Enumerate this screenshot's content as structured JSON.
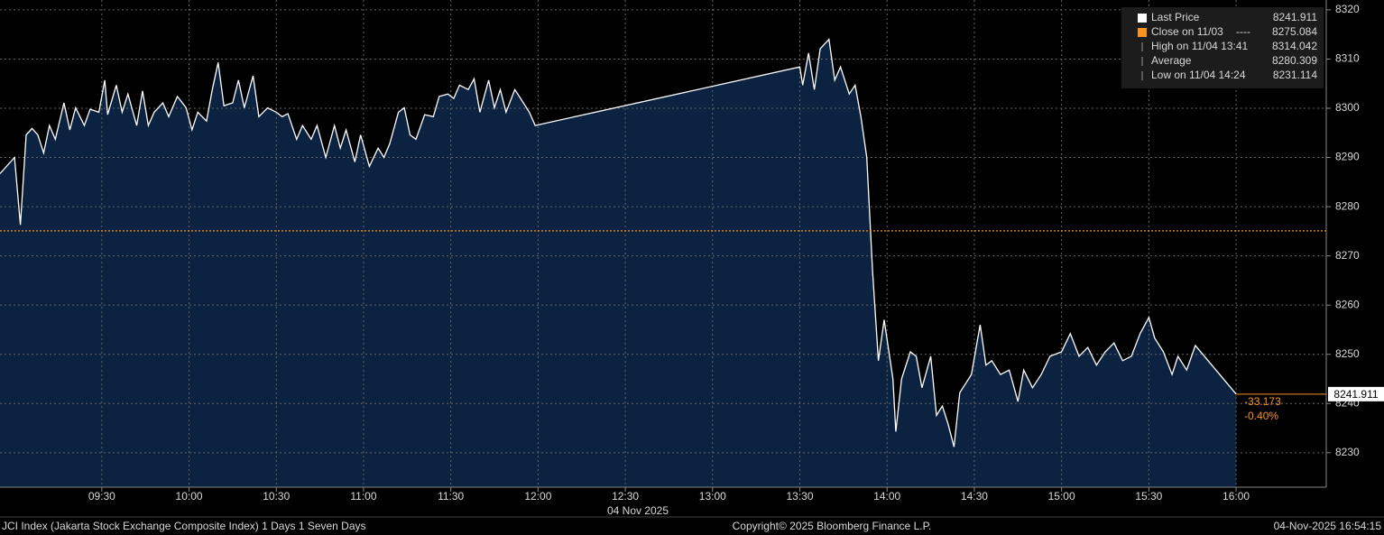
{
  "chart_data": {
    "type": "area",
    "x": [
      "08:55",
      "09:00",
      "09:02",
      "09:04",
      "09:06",
      "09:08",
      "09:10",
      "09:12",
      "09:14",
      "09:17",
      "09:19",
      "09:21",
      "09:24",
      "09:26",
      "09:29",
      "09:31",
      "09:32",
      "09:35",
      "09:37",
      "09:39",
      "09:42",
      "09:44",
      "09:46",
      "09:48",
      "09:51",
      "09:53",
      "09:56",
      "09:59",
      "10:01",
      "10:03",
      "10:06",
      "10:08",
      "10:10",
      "10:12",
      "10:15",
      "10:17",
      "10:19",
      "10:22",
      "10:24",
      "10:27",
      "10:30",
      "10:32",
      "10:34",
      "10:37",
      "10:39",
      "10:42",
      "10:44",
      "10:47",
      "10:50",
      "10:52",
      "10:54",
      "10:57",
      "10:59",
      "11:02",
      "11:05",
      "11:07",
      "11:09",
      "11:12",
      "11:14",
      "11:16",
      "11:18",
      "11:21",
      "11:24",
      "11:26",
      "11:29",
      "11:31",
      "11:33",
      "11:36",
      "11:38",
      "11:40",
      "11:43",
      "11:45",
      "11:47",
      "11:49",
      "11:52",
      "11:54",
      "11:57",
      "11:59",
      "13:30",
      "13:31",
      "13:33",
      "13:35",
      "13:37",
      "13:40",
      "13:42",
      "13:44",
      "13:47",
      "13:49",
      "13:51",
      "13:53",
      "13:55",
      "13:57",
      "13:59",
      "14:02",
      "14:03",
      "14:05",
      "14:08",
      "14:10",
      "14:12",
      "14:15",
      "14:17",
      "14:19",
      "14:21",
      "14:23",
      "14:25",
      "14:29",
      "14:32",
      "14:34",
      "14:36",
      "14:39",
      "14:42",
      "14:45",
      "14:47",
      "14:50",
      "14:53",
      "14:56",
      "15:00",
      "15:03",
      "15:06",
      "15:09",
      "15:12",
      "15:15",
      "15:18",
      "15:21",
      "15:24",
      "15:27",
      "15:30",
      "15:32",
      "15:35",
      "15:38",
      "15:40",
      "15:43",
      "15:46",
      "16:00"
    ],
    "series": [
      {
        "name": "Last Price",
        "color": "#ffffff",
        "fill": "#0b2240",
        "values": [
          8286.7,
          8290,
          8276.3,
          8294.6,
          8295.9,
          8294.6,
          8290.9,
          8296.5,
          8293.7,
          8301.1,
          8295.6,
          8300.1,
          8296.5,
          8299.8,
          8299.2,
          8305.7,
          8298.7,
          8304.7,
          8299.2,
          8302.9,
          8296.5,
          8303.5,
          8296.5,
          8299.2,
          8301.1,
          8298.3,
          8302.4,
          8300.1,
          8295.6,
          8299.2,
          8297.4,
          8303.8,
          8309.3,
          8300.5,
          8301.1,
          8305.7,
          8300.1,
          8306.6,
          8298.3,
          8300.1,
          8299.2,
          8298.3,
          8298.9,
          8293.7,
          8296.5,
          8293.7,
          8296.5,
          8290,
          8296.5,
          8291.9,
          8295.6,
          8289.1,
          8294.6,
          8288.2,
          8291.9,
          8290,
          8292.8,
          8299.2,
          8300.1,
          8294.6,
          8293.7,
          8298.7,
          8298.3,
          8302.4,
          8302.9,
          8302,
          8304.7,
          8303.8,
          8306,
          8299.2,
          8305.7,
          8300.1,
          8303.8,
          8299.2,
          8303.8,
          8302,
          8299.2,
          8296.5,
          8308.4,
          8304.7,
          8311.2,
          8303.8,
          8312.1,
          8314.0,
          8305.7,
          8308.4,
          8302.9,
          8304.7,
          8298.3,
          8290,
          8267,
          8248.7,
          8257,
          8245,
          8234.3,
          8245,
          8250.5,
          8249.6,
          8243.2,
          8249.6,
          8237.6,
          8239.5,
          8235.8,
          8231.2,
          8242.2,
          8245.9,
          8256,
          8247.8,
          8248.7,
          8245.9,
          8246.8,
          8240.4,
          8246.8,
          8243.2,
          8245.9,
          8249.6,
          8250.5,
          8254.2,
          8249.6,
          8251.4,
          8247.8,
          8250.5,
          8252.3,
          8248.7,
          8249.6,
          8254.2,
          8257.5,
          8253.3,
          8250.5,
          8245.9,
          8249.6,
          8246.8,
          8251.8,
          8241.911
        ]
      }
    ],
    "reference_lines": [
      {
        "label": "Close on 11/03",
        "dash": "----",
        "value": 8275.084,
        "color": "#f7941d"
      }
    ],
    "stats": [
      {
        "label": "High on 11/04 13:41",
        "value": 8314.042
      },
      {
        "label": "Average",
        "value": 8280.309
      },
      {
        "label": "Low on 11/04 14:24",
        "value": 8231.114
      }
    ],
    "change": {
      "value": -33.173,
      "percent": {
        "value": -0.4,
        "label": "-0.40%"
      },
      "color": "#f7941d"
    },
    "x_label": "04 Nov 2025",
    "xlim": [
      "08:55",
      "16:31"
    ],
    "xticks": [
      "09:30",
      "10:00",
      "10:30",
      "11:00",
      "11:30",
      "12:00",
      "12:30",
      "13:00",
      "13:30",
      "14:00",
      "14:30",
      "15:00",
      "15:30",
      "16:00"
    ],
    "ylim": [
      8223,
      8322
    ],
    "yticks": [
      8230,
      8240,
      8250,
      8260,
      8270,
      8280,
      8290,
      8300,
      8310,
      8320
    ],
    "grid": true,
    "legend": "top-right"
  },
  "footer": {
    "left": "JCI Index (Jakarta Stock Exchange Composite Index) 1 Days 1 Seven Days",
    "center": "Copyright© 2025 Bloomberg Finance L.P.",
    "right": "04-Nov-2025 16:54:15"
  }
}
